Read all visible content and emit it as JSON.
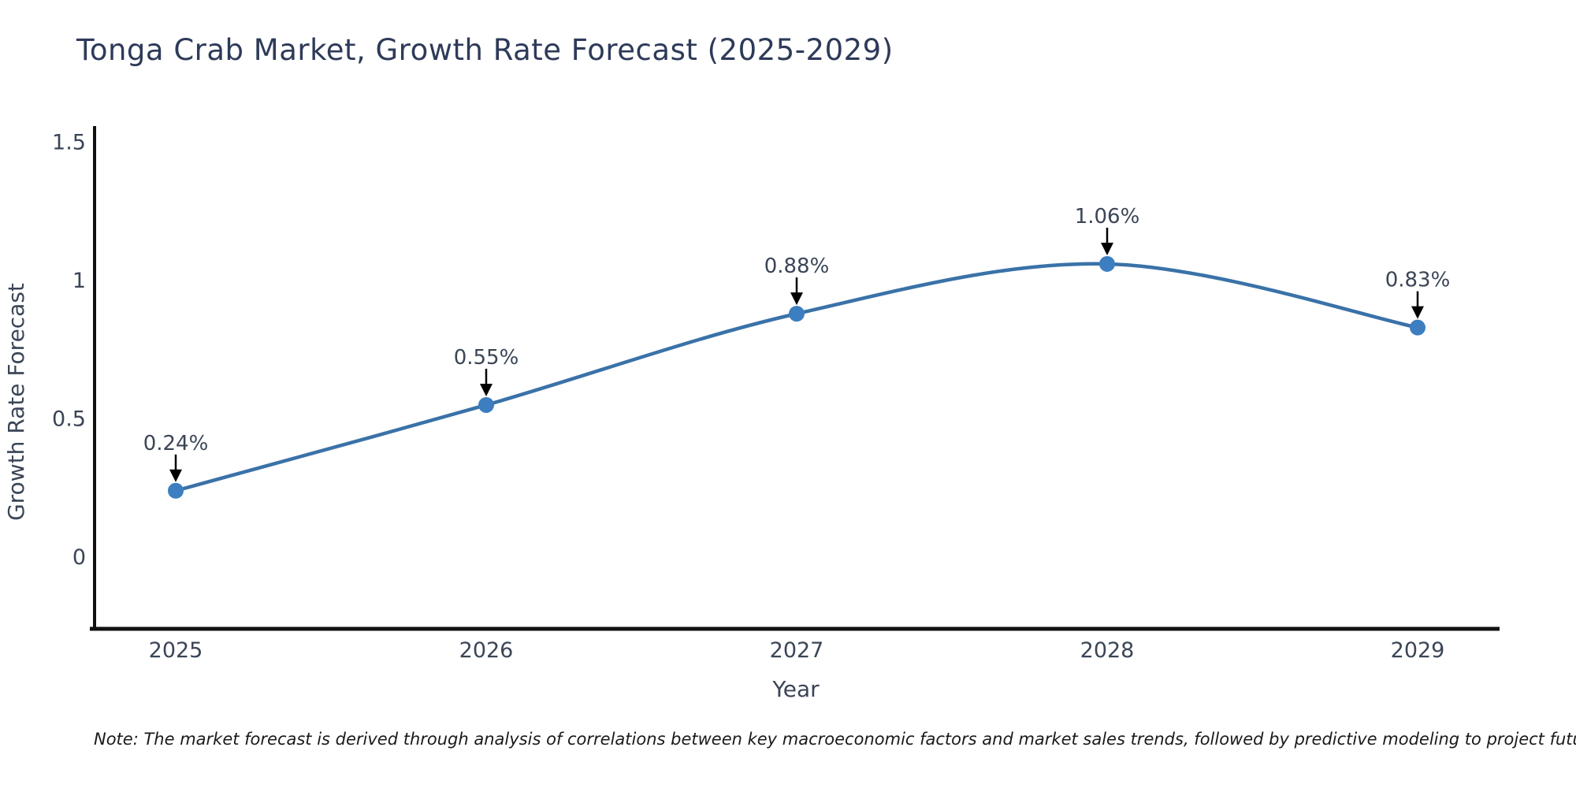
{
  "title": "Tonga Crab Market, Growth Rate Forecast (2025-2029)",
  "footnote": "Note: The market forecast is derived through analysis of correlations between key macroeconomic factors and market sales trends, followed by predictive modeling to project future sales.",
  "chart_data": {
    "type": "line",
    "title": "Tonga Crab Market, Growth Rate Forecast (2025-2029)",
    "categories": [
      "2025",
      "2026",
      "2027",
      "2028",
      "2029"
    ],
    "series": [
      {
        "name": "Growth Rate Forecast",
        "values": [
          0.24,
          0.55,
          0.88,
          1.06,
          0.83
        ]
      }
    ],
    "point_labels": [
      "0.24%",
      "0.55%",
      "0.88%",
      "1.06%",
      "0.83%"
    ],
    "xlabel": "Year",
    "ylabel": "Growth Rate Forecast",
    "yticks": {
      "values": [
        0,
        0.5,
        1,
        1.5
      ],
      "labels": [
        "0",
        "0.5",
        "1",
        "1.5"
      ]
    },
    "ylim": [
      -0.26,
      1.56
    ],
    "grid": false,
    "legend": "none",
    "line_style": "smooth-spline",
    "annotations": "value labels with downward arrows above each point",
    "colors": {
      "line": "#3a72a8",
      "marker": "#3c7ec0",
      "axis": "#111111",
      "tick_text": "#3a4556",
      "annotation_text": "#3a4556",
      "annotation_arrow": "#000000",
      "title_text": "#2e3a59",
      "note_text": "#1a1a1a"
    }
  }
}
